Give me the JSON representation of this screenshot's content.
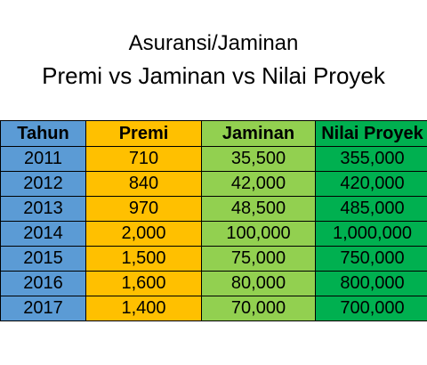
{
  "title": {
    "line1": "Asuransi/Jaminan",
    "line2": "Premi vs Jaminan vs Nilai Proyek"
  },
  "colors": {
    "tahun": "#5b9bd5",
    "premi": "#ffc000",
    "jaminan": "#92d050",
    "nilai_proyek": "#00b050",
    "border": "#000000"
  },
  "chart_data": {
    "type": "table",
    "title": "Asuransi/Jaminan Premi vs Jaminan vs Nilai Proyek",
    "columns": [
      "Tahun",
      "Premi",
      "Jaminan",
      "Nilai Proyek"
    ],
    "rows": [
      [
        "2011",
        "710",
        "35,500",
        "355,000"
      ],
      [
        "2012",
        "840",
        "42,000",
        "420,000"
      ],
      [
        "2013",
        "970",
        "48,500",
        "485,000"
      ],
      [
        "2014",
        "2,000",
        "100,000",
        "1,000,000"
      ],
      [
        "2015",
        "1,500",
        "75,000",
        "750,000"
      ],
      [
        "2016",
        "1,600",
        "80,000",
        "800,000"
      ],
      [
        "2017",
        "1,400",
        "70,000",
        "700,000"
      ]
    ]
  }
}
